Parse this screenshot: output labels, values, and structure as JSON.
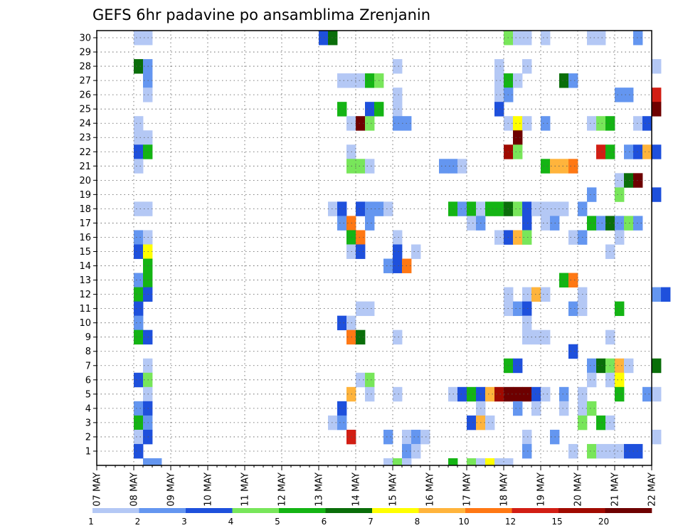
{
  "chart_data": {
    "type": "heatmap",
    "title": "GEFS 6hr padavine po ansamblima Zrenjanin",
    "x_tick_labels": [
      "07 MAY",
      "08 MAY",
      "09 MAY",
      "10 MAY",
      "11 MAY",
      "12 MAY",
      "13 MAY",
      "14 MAY",
      "15 MAY",
      "16 MAY",
      "17 MAY",
      "18 MAY",
      "19 MAY",
      "20 MAY",
      "21 MAY",
      "22 MAY"
    ],
    "y_tick_labels": [
      "1",
      "2",
      "3",
      "4",
      "5",
      "6",
      "7",
      "8",
      "9",
      "10",
      "11",
      "12",
      "13",
      "14",
      "15",
      "16",
      "17",
      "18",
      "19",
      "20",
      "21",
      "22",
      "23",
      "24",
      "25",
      "26",
      "27",
      "28",
      "29",
      "30"
    ],
    "x_range": [
      "07 MAY 00",
      "22 MAY 00"
    ],
    "y_range": [
      0,
      30
    ],
    "grid": true,
    "colorbar": {
      "boundaries": [
        "1",
        "2",
        "3",
        "4",
        "5",
        "6",
        "7",
        "8",
        "10",
        "12",
        "15",
        "20"
      ],
      "colors": [
        "#b4c8f5",
        "#6496f0",
        "#1e50dc",
        "#78e65a",
        "#14b414",
        "#0a6e0a",
        "#ffff00",
        "#ffb43c",
        "#ff7814",
        "#d21e14",
        "#a00a00",
        "#6e0000"
      ]
    },
    "cells_note": "each cell = [day_of_may, hour, member, color_class(1-12)]",
    "cells": [
      [
        8,
        0,
        30,
        1
      ],
      [
        8,
        6,
        30,
        1
      ],
      [
        13,
        0,
        30,
        3
      ],
      [
        13,
        6,
        30,
        6
      ],
      [
        18,
        0,
        30,
        4
      ],
      [
        18,
        6,
        30,
        1
      ],
      [
        18,
        12,
        30,
        1
      ],
      [
        19,
        0,
        30,
        1
      ],
      [
        20,
        6,
        30,
        1
      ],
      [
        20,
        12,
        30,
        1
      ],
      [
        21,
        12,
        30,
        2
      ],
      [
        8,
        0,
        28,
        6
      ],
      [
        8,
        6,
        28,
        2
      ],
      [
        15,
        0,
        28,
        1
      ],
      [
        17,
        18,
        28,
        1
      ],
      [
        18,
        12,
        28,
        1
      ],
      [
        22,
        0,
        28,
        1
      ],
      [
        8,
        6,
        27,
        2
      ],
      [
        13,
        12,
        27,
        1
      ],
      [
        13,
        18,
        27,
        1
      ],
      [
        14,
        0,
        27,
        1
      ],
      [
        14,
        6,
        27,
        5
      ],
      [
        14,
        12,
        27,
        4
      ],
      [
        17,
        18,
        27,
        1
      ],
      [
        18,
        0,
        27,
        5
      ],
      [
        18,
        6,
        27,
        1
      ],
      [
        19,
        12,
        27,
        6
      ],
      [
        19,
        18,
        27,
        2
      ],
      [
        8,
        6,
        26,
        1
      ],
      [
        15,
        0,
        26,
        1
      ],
      [
        17,
        18,
        26,
        1
      ],
      [
        18,
        0,
        26,
        2
      ],
      [
        21,
        0,
        26,
        2
      ],
      [
        21,
        6,
        26,
        2
      ],
      [
        22,
        0,
        26,
        10
      ],
      [
        13,
        12,
        25,
        5
      ],
      [
        14,
        6,
        25,
        3
      ],
      [
        14,
        12,
        25,
        5
      ],
      [
        15,
        0,
        25,
        1
      ],
      [
        17,
        18,
        25,
        3
      ],
      [
        22,
        0,
        25,
        12
      ],
      [
        8,
        0,
        24,
        1
      ],
      [
        13,
        18,
        24,
        1
      ],
      [
        14,
        0,
        24,
        12
      ],
      [
        14,
        6,
        24,
        4
      ],
      [
        15,
        0,
        24,
        2
      ],
      [
        15,
        6,
        24,
        2
      ],
      [
        18,
        0,
        24,
        1
      ],
      [
        18,
        6,
        24,
        7
      ],
      [
        18,
        12,
        24,
        1
      ],
      [
        19,
        0,
        24,
        2
      ],
      [
        20,
        6,
        24,
        1
      ],
      [
        20,
        12,
        24,
        4
      ],
      [
        20,
        18,
        24,
        5
      ],
      [
        21,
        12,
        24,
        1
      ],
      [
        21,
        18,
        24,
        3
      ],
      [
        8,
        0,
        23,
        1
      ],
      [
        8,
        6,
        23,
        1
      ],
      [
        18,
        6,
        23,
        12
      ],
      [
        8,
        0,
        22,
        3
      ],
      [
        8,
        6,
        22,
        5
      ],
      [
        13,
        18,
        22,
        1
      ],
      [
        18,
        0,
        22,
        11
      ],
      [
        18,
        6,
        22,
        4
      ],
      [
        20,
        12,
        22,
        10
      ],
      [
        20,
        18,
        22,
        5
      ],
      [
        21,
        6,
        22,
        2
      ],
      [
        21,
        12,
        22,
        3
      ],
      [
        21,
        18,
        22,
        8
      ],
      [
        22,
        0,
        22,
        3
      ],
      [
        8,
        0,
        21,
        1
      ],
      [
        13,
        18,
        21,
        4
      ],
      [
        14,
        0,
        21,
        4
      ],
      [
        14,
        6,
        21,
        1
      ],
      [
        16,
        6,
        21,
        2
      ],
      [
        16,
        12,
        21,
        2
      ],
      [
        16,
        18,
        21,
        1
      ],
      [
        19,
        0,
        21,
        5
      ],
      [
        19,
        6,
        21,
        8
      ],
      [
        19,
        12,
        21,
        8
      ],
      [
        19,
        18,
        21,
        9
      ],
      [
        21,
        0,
        20,
        1
      ],
      [
        21,
        6,
        20,
        6
      ],
      [
        21,
        12,
        20,
        12
      ],
      [
        20,
        6,
        19,
        2
      ],
      [
        21,
        0,
        19,
        4
      ],
      [
        22,
        0,
        19,
        3
      ],
      [
        8,
        0,
        18,
        1
      ],
      [
        8,
        6,
        18,
        1
      ],
      [
        13,
        6,
        18,
        1
      ],
      [
        13,
        12,
        18,
        3
      ],
      [
        14,
        0,
        18,
        3
      ],
      [
        14,
        6,
        18,
        2
      ],
      [
        14,
        12,
        18,
        2
      ],
      [
        14,
        18,
        18,
        1
      ],
      [
        16,
        12,
        18,
        5
      ],
      [
        16,
        18,
        18,
        2
      ],
      [
        17,
        0,
        18,
        5
      ],
      [
        17,
        6,
        18,
        1
      ],
      [
        17,
        12,
        18,
        5
      ],
      [
        17,
        18,
        18,
        5
      ],
      [
        18,
        0,
        18,
        6
      ],
      [
        18,
        6,
        18,
        4
      ],
      [
        18,
        12,
        18,
        3
      ],
      [
        18,
        18,
        18,
        1
      ],
      [
        19,
        0,
        18,
        1
      ],
      [
        19,
        6,
        18,
        1
      ],
      [
        19,
        12,
        18,
        1
      ],
      [
        20,
        0,
        18,
        2
      ],
      [
        13,
        12,
        17,
        2
      ],
      [
        13,
        18,
        17,
        9
      ],
      [
        14,
        6,
        17,
        2
      ],
      [
        17,
        0,
        17,
        1
      ],
      [
        17,
        6,
        17,
        2
      ],
      [
        18,
        12,
        17,
        3
      ],
      [
        19,
        0,
        17,
        1
      ],
      [
        19,
        6,
        17,
        2
      ],
      [
        20,
        6,
        17,
        5
      ],
      [
        20,
        12,
        17,
        2
      ],
      [
        20,
        18,
        17,
        6
      ],
      [
        21,
        0,
        17,
        2
      ],
      [
        21,
        6,
        17,
        4
      ],
      [
        21,
        12,
        17,
        2
      ],
      [
        8,
        0,
        16,
        2
      ],
      [
        8,
        6,
        16,
        1
      ],
      [
        13,
        18,
        16,
        5
      ],
      [
        14,
        0,
        16,
        9
      ],
      [
        15,
        0,
        16,
        1
      ],
      [
        17,
        18,
        16,
        1
      ],
      [
        18,
        0,
        16,
        3
      ],
      [
        18,
        6,
        16,
        8
      ],
      [
        18,
        12,
        16,
        4
      ],
      [
        19,
        18,
        16,
        1
      ],
      [
        20,
        0,
        16,
        2
      ],
      [
        21,
        0,
        16,
        1
      ],
      [
        8,
        0,
        15,
        3
      ],
      [
        8,
        6,
        15,
        7
      ],
      [
        13,
        18,
        15,
        1
      ],
      [
        14,
        0,
        15,
        3
      ],
      [
        15,
        0,
        15,
        3
      ],
      [
        15,
        12,
        15,
        1
      ],
      [
        20,
        18,
        15,
        1
      ],
      [
        8,
        6,
        14,
        5
      ],
      [
        14,
        18,
        14,
        2
      ],
      [
        15,
        0,
        14,
        3
      ],
      [
        15,
        6,
        14,
        9
      ],
      [
        8,
        0,
        13,
        2
      ],
      [
        8,
        6,
        13,
        5
      ],
      [
        19,
        12,
        13,
        5
      ],
      [
        19,
        18,
        13,
        9
      ],
      [
        8,
        0,
        12,
        5
      ],
      [
        8,
        6,
        12,
        3
      ],
      [
        18,
        0,
        12,
        1
      ],
      [
        18,
        12,
        12,
        1
      ],
      [
        18,
        18,
        12,
        8
      ],
      [
        19,
        0,
        12,
        1
      ],
      [
        20,
        0,
        12,
        1
      ],
      [
        22,
        0,
        12,
        2
      ],
      [
        22,
        6,
        12,
        3
      ],
      [
        8,
        0,
        11,
        3
      ],
      [
        14,
        0,
        11,
        1
      ],
      [
        14,
        6,
        11,
        1
      ],
      [
        18,
        0,
        11,
        1
      ],
      [
        18,
        6,
        11,
        2
      ],
      [
        18,
        12,
        11,
        3
      ],
      [
        19,
        18,
        11,
        2
      ],
      [
        20,
        0,
        11,
        1
      ],
      [
        21,
        0,
        11,
        5
      ],
      [
        8,
        0,
        10,
        2
      ],
      [
        13,
        12,
        10,
        3
      ],
      [
        13,
        18,
        10,
        1
      ],
      [
        18,
        12,
        10,
        1
      ],
      [
        8,
        0,
        9,
        5
      ],
      [
        8,
        6,
        9,
        3
      ],
      [
        13,
        18,
        9,
        9
      ],
      [
        14,
        0,
        9,
        6
      ],
      [
        15,
        0,
        9,
        1
      ],
      [
        18,
        12,
        9,
        1
      ],
      [
        18,
        18,
        9,
        1
      ],
      [
        19,
        0,
        9,
        1
      ],
      [
        20,
        18,
        9,
        1
      ],
      [
        19,
        18,
        8,
        3
      ],
      [
        8,
        6,
        7,
        1
      ],
      [
        18,
        0,
        7,
        5
      ],
      [
        18,
        6,
        7,
        3
      ],
      [
        20,
        6,
        7,
        2
      ],
      [
        20,
        12,
        7,
        6
      ],
      [
        20,
        18,
        7,
        4
      ],
      [
        21,
        0,
        7,
        8
      ],
      [
        21,
        6,
        7,
        1
      ],
      [
        22,
        0,
        7,
        6
      ],
      [
        8,
        0,
        6,
        3
      ],
      [
        8,
        6,
        6,
        4
      ],
      [
        14,
        0,
        6,
        1
      ],
      [
        14,
        6,
        6,
        4
      ],
      [
        20,
        6,
        6,
        1
      ],
      [
        20,
        18,
        6,
        1
      ],
      [
        21,
        0,
        6,
        7
      ],
      [
        8,
        6,
        5,
        1
      ],
      [
        13,
        18,
        5,
        8
      ],
      [
        14,
        6,
        5,
        1
      ],
      [
        15,
        0,
        5,
        1
      ],
      [
        16,
        12,
        5,
        1
      ],
      [
        16,
        18,
        5,
        3
      ],
      [
        17,
        0,
        5,
        5
      ],
      [
        17,
        6,
        5,
        3
      ],
      [
        17,
        12,
        5,
        8
      ],
      [
        17,
        18,
        5,
        11
      ],
      [
        18,
        0,
        5,
        12
      ],
      [
        18,
        6,
        5,
        12
      ],
      [
        18,
        12,
        5,
        12
      ],
      [
        18,
        18,
        5,
        3
      ],
      [
        19,
        0,
        5,
        1
      ],
      [
        19,
        12,
        5,
        2
      ],
      [
        20,
        0,
        5,
        1
      ],
      [
        21,
        0,
        5,
        5
      ],
      [
        21,
        18,
        5,
        2
      ],
      [
        22,
        0,
        5,
        1
      ],
      [
        8,
        0,
        4,
        2
      ],
      [
        8,
        6,
        4,
        3
      ],
      [
        13,
        12,
        4,
        3
      ],
      [
        17,
        6,
        4,
        1
      ],
      [
        18,
        6,
        4,
        2
      ],
      [
        18,
        18,
        4,
        1
      ],
      [
        19,
        12,
        4,
        1
      ],
      [
        20,
        0,
        4,
        1
      ],
      [
        20,
        6,
        4,
        4
      ],
      [
        8,
        0,
        3,
        5
      ],
      [
        8,
        6,
        3,
        2
      ],
      [
        13,
        6,
        3,
        1
      ],
      [
        13,
        12,
        3,
        2
      ],
      [
        17,
        0,
        3,
        3
      ],
      [
        17,
        6,
        3,
        8
      ],
      [
        17,
        12,
        3,
        1
      ],
      [
        20,
        0,
        3,
        4
      ],
      [
        20,
        12,
        3,
        5
      ],
      [
        20,
        18,
        3,
        1
      ],
      [
        8,
        0,
        2,
        1
      ],
      [
        8,
        6,
        2,
        3
      ],
      [
        13,
        18,
        2,
        10
      ],
      [
        14,
        18,
        2,
        2
      ],
      [
        15,
        6,
        2,
        1
      ],
      [
        15,
        12,
        2,
        2
      ],
      [
        15,
        18,
        2,
        1
      ],
      [
        18,
        12,
        2,
        1
      ],
      [
        19,
        6,
        2,
        2
      ],
      [
        22,
        0,
        2,
        1
      ],
      [
        8,
        0,
        1,
        3
      ],
      [
        15,
        6,
        1,
        2
      ],
      [
        15,
        12,
        1,
        1
      ],
      [
        18,
        12,
        1,
        2
      ],
      [
        19,
        18,
        1,
        1
      ],
      [
        20,
        6,
        1,
        4
      ],
      [
        20,
        12,
        1,
        1
      ],
      [
        20,
        18,
        1,
        1
      ],
      [
        21,
        0,
        1,
        1
      ],
      [
        21,
        6,
        1,
        3
      ],
      [
        21,
        12,
        1,
        3
      ],
      [
        8,
        6,
        0,
        2
      ],
      [
        8,
        12,
        0,
        2
      ],
      [
        14,
        18,
        0,
        1
      ],
      [
        15,
        0,
        0,
        4
      ],
      [
        15,
        6,
        0,
        1
      ],
      [
        16,
        12,
        0,
        5
      ],
      [
        17,
        0,
        0,
        4
      ],
      [
        17,
        6,
        0,
        1
      ],
      [
        17,
        12,
        0,
        7
      ],
      [
        17,
        18,
        0,
        1
      ],
      [
        18,
        0,
        0,
        1
      ]
    ]
  }
}
